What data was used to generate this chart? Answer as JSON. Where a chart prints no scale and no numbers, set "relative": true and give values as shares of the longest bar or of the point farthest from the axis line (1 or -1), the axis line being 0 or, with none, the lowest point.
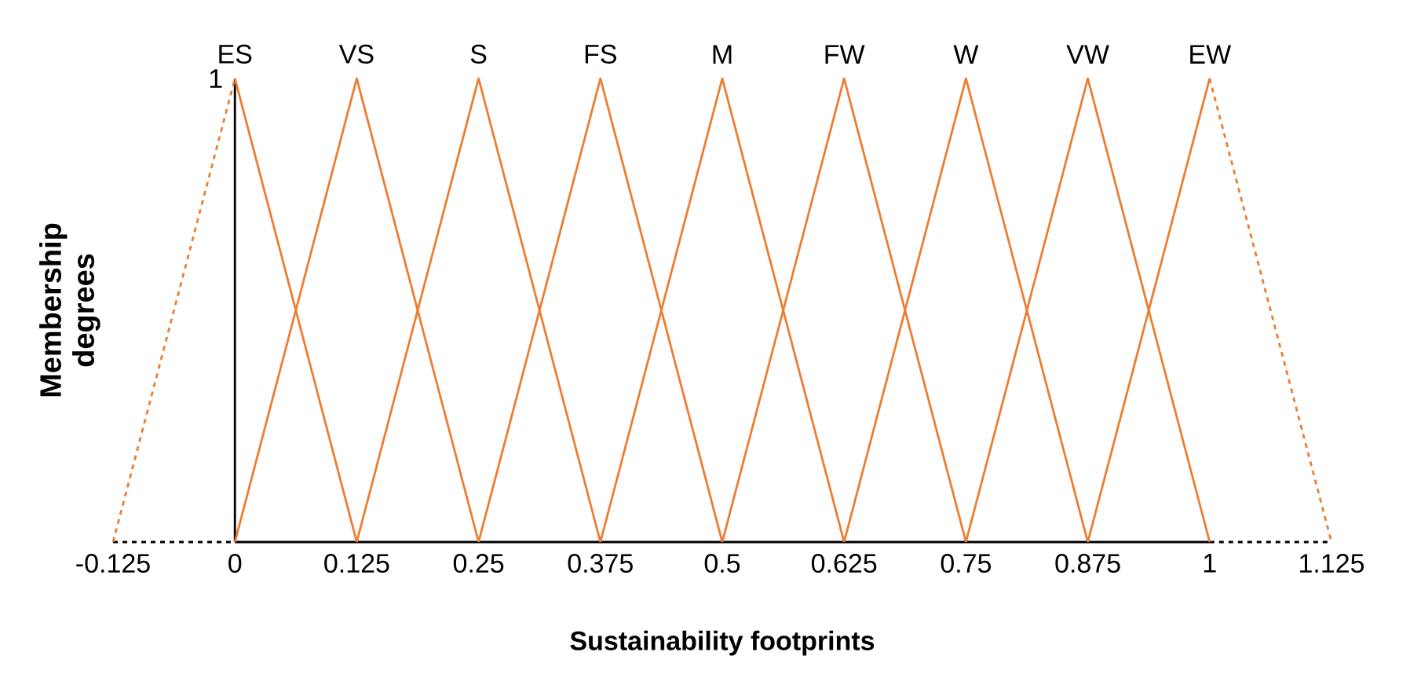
{
  "chart_data": {
    "type": "line",
    "relative": true,
    "xlabel": "**Sustainability footprints**",
    "ylabel": "**Membership degrees**",
    "xlim": [
      -0.125,
      1.125
    ],
    "xticks": [
      -0.125,
      0,
      0.125,
      0.25,
      0.375,
      0.5,
      0.625,
      0.75,
      0.875,
      1,
      1.125
    ],
    "series": [
      {
        "color": "#ed7d31",
        "x": [
          -0.125,
          0
        ],
        "values": [
          0,
          1
        ],
        "line_style": "dashed"
      },
      {
        "color": "#ed7d31",
        "x": [
          0,
          0.125
        ],
        "values": [
          1,
          0
        ]
      },
      {
        "color": "#ed7d31",
        "x": [
          0,
          0.125,
          0.25
        ],
        "values": [
          0,
          1,
          0
        ]
      },
      {
        "color": "#ed7d31",
        "x": [
          0.125,
          0.25,
          0.375
        ],
        "values": [
          0,
          1,
          0
        ]
      },
      {
        "color": "#ed7d31",
        "x": [
          0.25,
          0.375,
          0.5
        ],
        "values": [
          0,
          1,
          0
        ]
      },
      {
        "color": "#ed7d31",
        "x": [
          0.375,
          0.5,
          0.625
        ],
        "values": [
          0,
          1,
          0
        ]
      },
      {
        "color": "#ed7d31",
        "x": [
          0.5,
          0.625,
          0.75
        ],
        "values": [
          0,
          1,
          0
        ]
      },
      {
        "color": "#ed7d31",
        "x": [
          0.625,
          0.75,
          0.875
        ],
        "values": [
          0,
          1,
          0
        ]
      },
      {
        "color": "#ed7d31",
        "x": [
          0.75,
          0.875,
          1
        ],
        "values": [
          0,
          1,
          0
        ]
      },
      {
        "color": "#ed7d31",
        "x": [
          0.875,
          1
        ],
        "values": [
          0,
          1
        ]
      },
      {
        "color": "#ed7d31",
        "x": [
          1,
          1.125
        ],
        "values": [
          1,
          0
        ],
        "line_style": "dashed"
      }
    ],
    "annotations": [
      {
        "text": "ES",
        "x": 0,
        "y": 1
      },
      {
        "text": "VS",
        "x": 0.125,
        "y": 1
      },
      {
        "text": "S",
        "x": 0.25,
        "y": 1
      },
      {
        "text": "FS",
        "x": 0.375,
        "y": 1
      },
      {
        "text": "M",
        "x": 0.5,
        "y": 1
      },
      {
        "text": "FW",
        "x": 0.625,
        "y": 1
      },
      {
        "text": "W",
        "x": 0.75,
        "y": 1
      },
      {
        "text": "VW",
        "x": 0.875,
        "y": 1
      },
      {
        "text": "EW",
        "x": 1,
        "y": 1
      },
      "1"
    ]
  }
}
